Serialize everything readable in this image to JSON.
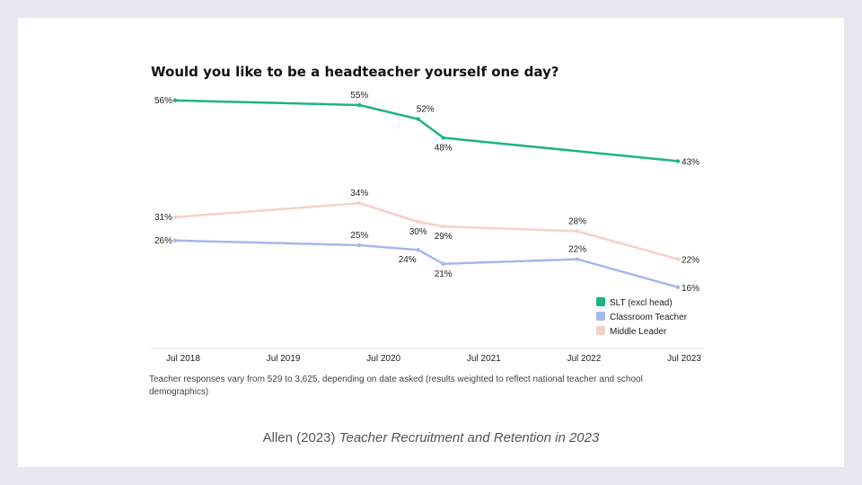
{
  "chart_data": {
    "type": "line",
    "title": "Would you like to be a headteacher yourself one day?",
    "xlabel": "",
    "ylabel": "",
    "x_ticks": [
      "Jul 2018",
      "Jul 2019",
      "Jul 2020",
      "Jul 2021",
      "Jul 2022",
      "Jul 2023"
    ],
    "x_range": [
      "2018-07",
      "2023-07"
    ],
    "legend_position": "bottom-right",
    "grid": false,
    "series": [
      {
        "name": "SLT (excl head)",
        "color": "#1db386",
        "points": [
          {
            "x": "2018-07",
            "y": 56,
            "label": "56%"
          },
          {
            "x": "2020-05",
            "y": 55,
            "label": "55%"
          },
          {
            "x": "2020-12",
            "y": 52,
            "label": "52%"
          },
          {
            "x": "2021-03",
            "y": 48,
            "label": "48%"
          },
          {
            "x": "2023-07",
            "y": 43,
            "label": "43%"
          }
        ]
      },
      {
        "name": "Classroom Teacher",
        "color": "#a7b7ee",
        "points": [
          {
            "x": "2018-07",
            "y": 26,
            "label": "26%"
          },
          {
            "x": "2020-05",
            "y": 25,
            "label": "25%"
          },
          {
            "x": "2020-12",
            "y": 24,
            "label": "24%"
          },
          {
            "x": "2021-03",
            "y": 21,
            "label": "21%"
          },
          {
            "x": "2022-07",
            "y": 22,
            "label": "22%"
          },
          {
            "x": "2023-07",
            "y": 16,
            "label": "16%"
          }
        ]
      },
      {
        "name": "Middle Leader",
        "color": "#f6cfca",
        "points": [
          {
            "x": "2018-07",
            "y": 31,
            "label": "31%"
          },
          {
            "x": "2020-05",
            "y": 34,
            "label": "34%"
          },
          {
            "x": "2020-12",
            "y": 30,
            "label": "30%"
          },
          {
            "x": "2021-03",
            "y": 29,
            "label": "29%"
          },
          {
            "x": "2022-07",
            "y": 28,
            "label": "28%"
          },
          {
            "x": "2023-07",
            "y": 22,
            "label": "22%"
          }
        ]
      }
    ]
  },
  "footnote": "Teacher responses vary from 529 to 3,625, depending on date asked (results weighted to reflect national teacher and school demographics)",
  "citation": {
    "author": "Allen (2023)",
    "work": "Teacher Recruitment and Retention in 2023"
  }
}
